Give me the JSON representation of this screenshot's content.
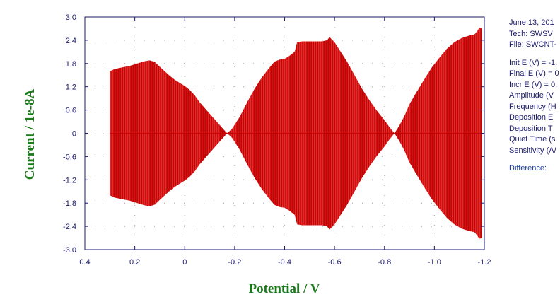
{
  "colors": {
    "signal": "#cc0000",
    "axis": "#1a1a6e",
    "axis_title": "#1a7a1a",
    "info_text": "#1a1a6e",
    "difference": "#1a3a9c"
  },
  "info_panel": {
    "header": [
      "June 13, 201",
      "Tech: SWSV",
      "File: SWCNT-"
    ],
    "params": [
      "Init E (V) = -1.",
      "Final E (V) = 0",
      "Incr E (V) = 0.",
      "Amplitude (V",
      "Frequency (H",
      "Deposition E",
      "Deposition T",
      "Quiet Time (s",
      "Sensitivity (A/"
    ],
    "difference": "Difference:"
  },
  "chart_data": {
    "type": "area",
    "xlabel": "Potential / V",
    "ylabel": "Current / 1e-8A",
    "xlim": [
      0.4,
      -1.2
    ],
    "ylim": [
      -3.0,
      3.0
    ],
    "x_reversed": true,
    "grid": true,
    "x_ticks": [
      "0.4",
      "0.2",
      "0",
      "-0.2",
      "-0.4",
      "-0.6",
      "-0.8",
      "-1.0",
      "-1.2"
    ],
    "y_ticks": [
      "3.0",
      "2.4",
      "1.8",
      "1.2",
      "0.6",
      "0",
      "-0.6",
      "-1.2",
      "-1.8",
      "-2.4",
      "-3.0"
    ],
    "series": [
      {
        "points": [
          [
            0.3,
            1.6
          ],
          [
            0.28,
            1.66
          ],
          [
            0.25,
            1.7
          ],
          [
            0.22,
            1.74
          ],
          [
            0.19,
            1.8
          ],
          [
            0.16,
            1.86
          ],
          [
            0.14,
            1.88
          ],
          [
            0.12,
            1.84
          ],
          [
            0.1,
            1.72
          ],
          [
            0.08,
            1.6
          ],
          [
            0.06,
            1.48
          ],
          [
            0.04,
            1.38
          ],
          [
            0.02,
            1.3
          ],
          [
            0.0,
            1.22
          ],
          [
            -0.02,
            1.12
          ],
          [
            -0.04,
            0.98
          ],
          [
            -0.06,
            0.8
          ],
          [
            -0.09,
            0.58
          ],
          [
            -0.12,
            0.36
          ],
          [
            -0.15,
            0.14
          ],
          [
            -0.17,
            0.0
          ],
          [
            -0.19,
            0.12
          ],
          [
            -0.22,
            0.42
          ],
          [
            -0.25,
            0.8
          ],
          [
            -0.28,
            1.15
          ],
          [
            -0.31,
            1.45
          ],
          [
            -0.34,
            1.7
          ],
          [
            -0.36,
            1.85
          ],
          [
            -0.38,
            1.9
          ],
          [
            -0.4,
            1.92
          ],
          [
            -0.42,
            2.0
          ],
          [
            -0.44,
            2.1
          ],
          [
            -0.45,
            2.35
          ],
          [
            -0.47,
            2.37
          ],
          [
            -0.5,
            2.37
          ],
          [
            -0.53,
            2.37
          ],
          [
            -0.55,
            2.37
          ],
          [
            -0.57,
            2.4
          ],
          [
            -0.58,
            2.48
          ],
          [
            -0.6,
            2.35
          ],
          [
            -0.62,
            2.15
          ],
          [
            -0.65,
            1.85
          ],
          [
            -0.68,
            1.5
          ],
          [
            -0.71,
            1.15
          ],
          [
            -0.74,
            0.85
          ],
          [
            -0.77,
            0.58
          ],
          [
            -0.8,
            0.34
          ],
          [
            -0.82,
            0.16
          ],
          [
            -0.84,
            0.0
          ],
          [
            -0.86,
            0.2
          ],
          [
            -0.88,
            0.45
          ],
          [
            -0.9,
            0.75
          ],
          [
            -0.93,
            1.08
          ],
          [
            -0.96,
            1.4
          ],
          [
            -0.99,
            1.7
          ],
          [
            -1.02,
            1.95
          ],
          [
            -1.05,
            2.18
          ],
          [
            -1.08,
            2.35
          ],
          [
            -1.11,
            2.46
          ],
          [
            -1.14,
            2.52
          ],
          [
            -1.16,
            2.55
          ],
          [
            -1.17,
            2.62
          ],
          [
            -1.18,
            2.72
          ],
          [
            -1.19,
            2.7
          ]
        ]
      }
    ]
  }
}
